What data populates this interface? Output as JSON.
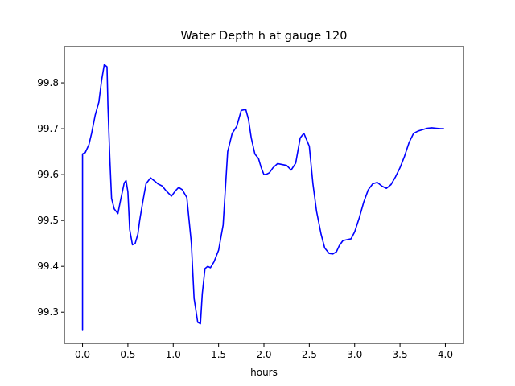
{
  "chart_data": {
    "type": "line",
    "title": "Water Depth h at gauge 120",
    "xlabel": "hours",
    "ylabel": "",
    "xlim": [
      -0.2,
      4.2
    ],
    "ylim": [
      99.232,
      99.879
    ],
    "xticks": [
      0.0,
      0.5,
      1.0,
      1.5,
      2.0,
      2.5,
      3.0,
      3.5,
      4.0
    ],
    "xtick_labels": [
      "0.0",
      "0.5",
      "1.0",
      "1.5",
      "2.0",
      "2.5",
      "3.0",
      "3.5",
      "4.0"
    ],
    "yticks": [
      99.3,
      99.4,
      99.5,
      99.6,
      99.7,
      99.8
    ],
    "ytick_labels": [
      "99.3",
      "99.4",
      "99.5",
      "99.6",
      "99.7",
      "99.8"
    ],
    "grid": false,
    "series": [
      {
        "color": "#0000ff",
        "x": [
          0.0,
          0.0,
          0.0,
          0.03,
          0.07,
          0.1,
          0.14,
          0.18,
          0.21,
          0.24,
          0.27,
          0.28,
          0.3,
          0.32,
          0.35,
          0.39,
          0.42,
          0.46,
          0.48,
          0.5,
          0.52,
          0.55,
          0.58,
          0.61,
          0.63,
          0.66,
          0.7,
          0.75,
          0.8,
          0.83,
          0.88,
          0.92,
          0.98,
          1.03,
          1.06,
          1.1,
          1.15,
          1.2,
          1.23,
          1.27,
          1.3,
          1.32,
          1.35,
          1.38,
          1.41,
          1.45,
          1.5,
          1.55,
          1.6,
          1.65,
          1.7,
          1.75,
          1.8,
          1.83,
          1.86,
          1.9,
          1.94,
          1.97,
          2.0,
          2.03,
          2.06,
          2.1,
          2.15,
          2.2,
          2.25,
          2.3,
          2.35,
          2.4,
          2.44,
          2.5,
          2.54,
          2.58,
          2.63,
          2.67,
          2.72,
          2.76,
          2.8,
          2.83,
          2.87,
          2.91,
          2.96,
          3.0,
          3.05,
          3.1,
          3.15,
          3.2,
          3.25,
          3.3,
          3.35,
          3.4,
          3.45,
          3.5,
          3.55,
          3.6,
          3.65,
          3.7,
          3.75,
          3.8,
          3.85,
          3.9,
          3.95,
          3.98
        ],
        "y": [
          99.262,
          99.645,
          99.645,
          99.648,
          99.665,
          99.69,
          99.73,
          99.758,
          99.805,
          99.84,
          99.835,
          99.75,
          99.64,
          99.548,
          99.525,
          99.515,
          99.545,
          99.582,
          99.587,
          99.562,
          99.48,
          99.447,
          99.45,
          99.47,
          99.5,
          99.536,
          99.58,
          99.593,
          99.585,
          99.58,
          99.575,
          99.565,
          99.553,
          99.566,
          99.572,
          99.567,
          99.55,
          99.45,
          99.33,
          99.278,
          99.275,
          99.34,
          99.395,
          99.4,
          99.397,
          99.41,
          99.435,
          99.49,
          99.65,
          99.69,
          99.705,
          99.74,
          99.742,
          99.72,
          99.68,
          99.645,
          99.635,
          99.615,
          99.6,
          99.601,
          99.604,
          99.615,
          99.624,
          99.622,
          99.62,
          99.61,
          99.625,
          99.68,
          99.69,
          99.662,
          99.58,
          99.52,
          99.47,
          99.44,
          99.428,
          99.427,
          99.432,
          99.445,
          99.456,
          99.458,
          99.46,
          99.475,
          99.505,
          99.54,
          99.567,
          99.58,
          99.583,
          99.575,
          99.57,
          99.578,
          99.595,
          99.615,
          99.64,
          99.67,
          99.69,
          99.695,
          99.698,
          99.701,
          99.702,
          99.701,
          99.7,
          99.7
        ]
      }
    ]
  }
}
